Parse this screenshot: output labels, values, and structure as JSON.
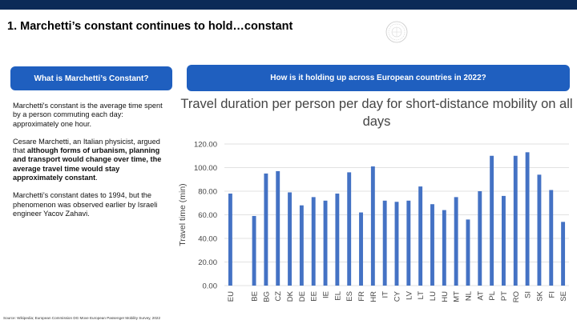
{
  "header": {
    "title": "1. Marchetti’s constant continues to hold…constant"
  },
  "left_panel": {
    "heading": "What is Marchetti’s Constant?",
    "para1": "Marchetti's constant is the average time spent by a person commuting each day: approximately one hour.",
    "para2_a": "Cesare Marchetti, an Italian physicist, argued that ",
    "para2_b": "although forms of urbanism, planning and transport would change over time, the average travel time would stay approximately constant",
    "para2_c": ".",
    "para3": "Marchetti’s constant dates to 1994, but the phenomenon was observed earlier by Israeli engineer Yacov Zahavi."
  },
  "right_panel": {
    "heading": "How is it holding up across European countries in 2022?"
  },
  "source": "Source: Wikipedia; European Commission DG Move European Passenger Mobility Survey, 2022",
  "colors": {
    "top_bar": "#0b2a57",
    "pill": "#1f5fbf",
    "bar": "#4472c4"
  },
  "chart_data": {
    "type": "bar",
    "title": "Travel duration per person per day for short-distance mobility on all days",
    "xlabel": "",
    "ylabel": "Travel time (min)",
    "ylim": [
      0,
      120
    ],
    "yticks": [
      "0.00",
      "20.00",
      "40.00",
      "60.00",
      "80.00",
      "100.00",
      "120.00"
    ],
    "grid": true,
    "categories": [
      "EU",
      "",
      "BE",
      "BG",
      "CZ",
      "DK",
      "DE",
      "EE",
      "IE",
      "EL",
      "ES",
      "FR",
      "HR",
      "IT",
      "CY",
      "LV",
      "LT",
      "LU",
      "HU",
      "MT",
      "NL",
      "AT",
      "PL",
      "PT",
      "RO",
      "SI",
      "SK",
      "FI",
      "SE"
    ],
    "values": [
      78,
      null,
      59,
      95,
      97,
      79,
      68,
      75,
      72,
      78,
      96,
      62,
      101,
      72,
      71,
      72,
      84,
      69,
      64,
      75,
      56,
      80,
      110,
      76,
      110,
      113,
      94,
      81,
      54
    ]
  }
}
